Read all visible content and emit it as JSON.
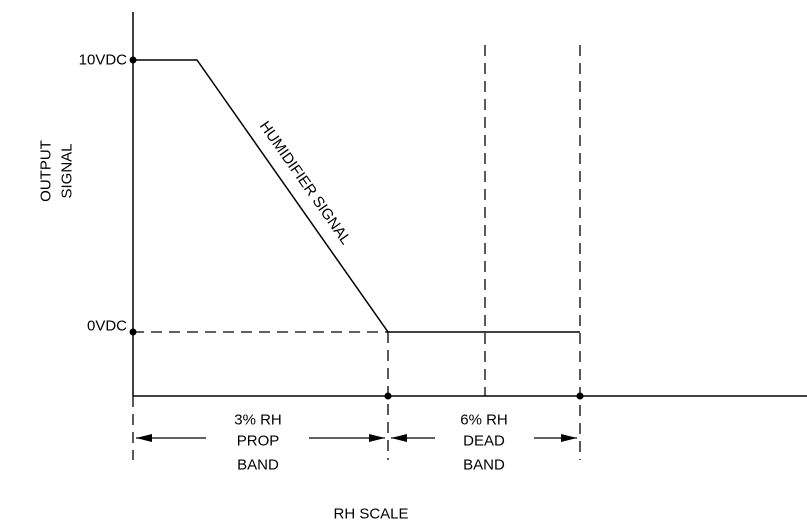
{
  "labels": {
    "ten_vdc": "10VDC",
    "zero_vdc": "0VDC",
    "y_axis_line1": "OUTPUT",
    "y_axis_line2": "SIGNAL",
    "curve": "HUMIDIFIER SIGNAL",
    "prop_band_line1": "3% RH",
    "prop_band_line2": "PROP",
    "prop_band_line3": "BAND",
    "dead_band_line1": "6% RH",
    "dead_band_line2": "DEAD",
    "dead_band_line3": "BAND",
    "x_axis": "RH SCALE"
  },
  "colors": {
    "ink": "#000000",
    "background": "#ffffff"
  }
}
